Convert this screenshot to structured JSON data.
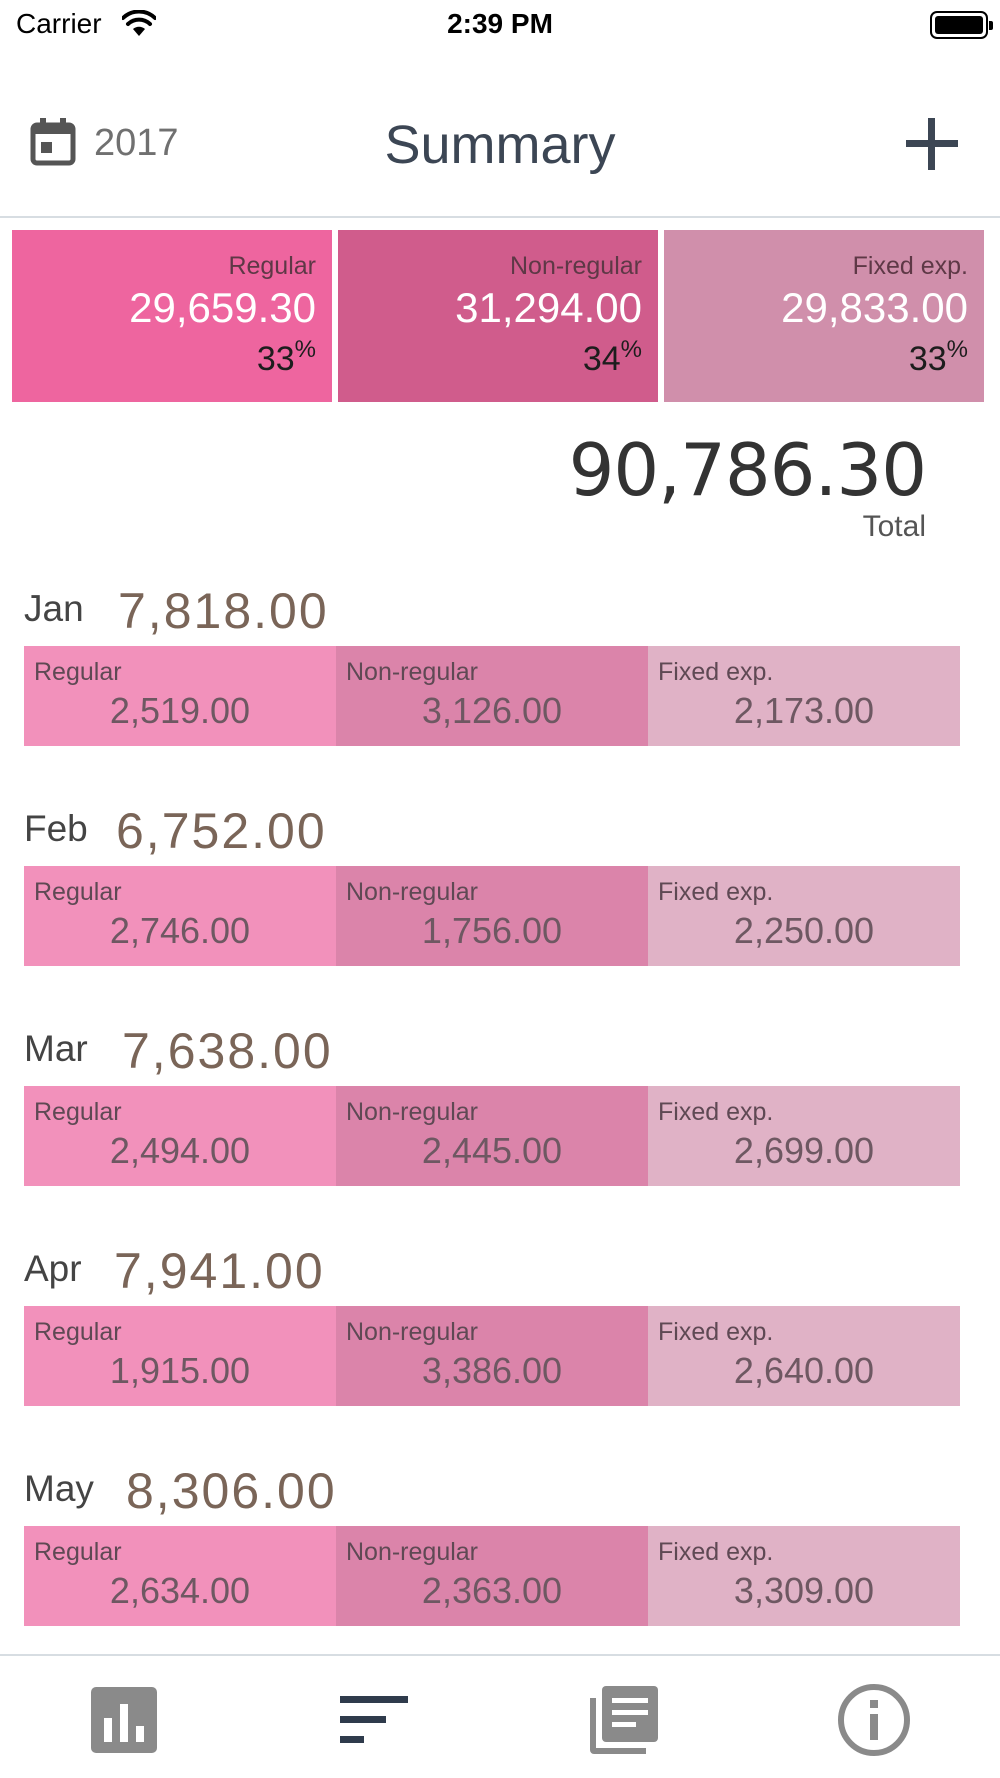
{
  "status_bar": {
    "carrier": "Carrier",
    "time": "2:39 PM"
  },
  "nav": {
    "year": "2017",
    "title": "Summary"
  },
  "summary": [
    {
      "label": "Regular",
      "value": "29,659.30",
      "pct": "33",
      "pct_sign": "%",
      "color": "#ee659f"
    },
    {
      "label": "Non-regular",
      "value": "31,294.00",
      "pct": "34",
      "pct_sign": "%",
      "color": "#d05c8c"
    },
    {
      "label": "Fixed exp.",
      "value": "29,833.00",
      "pct": "33",
      "pct_sign": "%",
      "color": "#d08fab"
    }
  ],
  "total": {
    "value": "90,786.30",
    "label": "Total"
  },
  "months": [
    {
      "name": "Jan",
      "total": "7,818.00",
      "regular_label": "Regular",
      "regular": "2,519.00",
      "nonregular_label": "Non-regular",
      "nonregular": "3,126.00",
      "fixed_label": "Fixed exp.",
      "fixed": "2,173.00"
    },
    {
      "name": "Feb",
      "total": "6,752.00",
      "regular_label": "Regular",
      "regular": "2,746.00",
      "nonregular_label": "Non-regular",
      "nonregular": "1,756.00",
      "fixed_label": "Fixed exp.",
      "fixed": "2,250.00"
    },
    {
      "name": "Mar",
      "total": "7,638.00",
      "regular_label": "Regular",
      "regular": "2,494.00",
      "nonregular_label": "Non-regular",
      "nonregular": "2,445.00",
      "fixed_label": "Fixed exp.",
      "fixed": "2,699.00"
    },
    {
      "name": "Apr",
      "total": "7,941.00",
      "regular_label": "Regular",
      "regular": "1,915.00",
      "nonregular_label": "Non-regular",
      "nonregular": "3,386.00",
      "fixed_label": "Fixed exp.",
      "fixed": "2,640.00"
    },
    {
      "name": "May",
      "total": "8,306.00",
      "regular_label": "Regular",
      "regular": "2,634.00",
      "nonregular_label": "Non-regular",
      "nonregular": "2,363.00",
      "fixed_label": "Fixed exp.",
      "fixed": "3,309.00"
    }
  ],
  "tabs": [
    {
      "icon": "bar-chart-icon",
      "active": false
    },
    {
      "icon": "sort-list-icon",
      "active": true
    },
    {
      "icon": "document-list-icon",
      "active": false
    },
    {
      "icon": "info-icon",
      "active": false
    }
  ],
  "colors": {
    "regular": "#f291bb",
    "nonregular": "#db84aa",
    "fixed": "#e0b2c6",
    "accent_text": "#3c4654",
    "month_total": "#7a6558"
  }
}
